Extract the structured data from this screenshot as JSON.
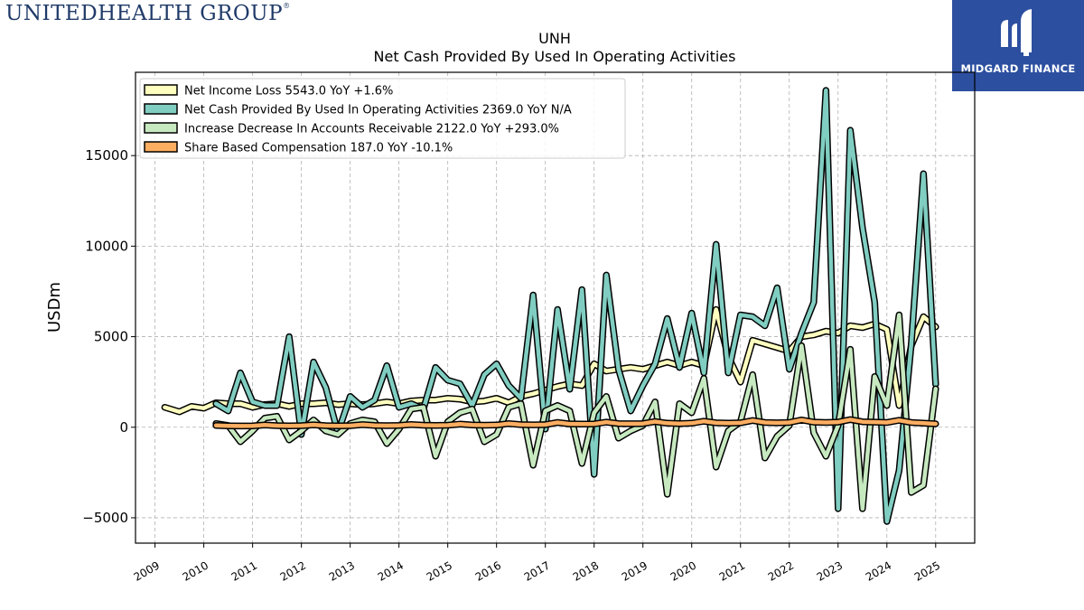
{
  "brand": {
    "logo_text": "UNITEDHEALTH GROUP",
    "logo_mark": "®"
  },
  "partner": {
    "name": "MIDGARD FINANCE",
    "bg_color": "#2c4fa0"
  },
  "chart_data": {
    "type": "line",
    "title": "UNH",
    "subtitle": "Net Cash Provided By Used In Operating Activities",
    "xlabel": "",
    "ylabel": "USDm",
    "xlim": [
      2008.6,
      2025.8
    ],
    "ylim": [
      -6400,
      19600
    ],
    "yticks": [
      -5000,
      0,
      5000,
      10000,
      15000
    ],
    "ytick_labels": [
      "−5000",
      "0",
      "5000",
      "10000",
      "15000"
    ],
    "xticks": [
      "2009",
      "2010",
      "2011",
      "2012",
      "2013",
      "2014",
      "2015",
      "2016",
      "2017",
      "2018",
      "2019",
      "2020",
      "2021",
      "2022",
      "2023",
      "2024",
      "2025"
    ],
    "grid": true,
    "legend_position": "top-left",
    "series": [
      {
        "name": "Net Income Loss",
        "legend_label": "Net Income Loss  5543.0 YoY +1.6%",
        "color": "#ffffbf",
        "x": [
          2009.2,
          2009.5,
          2009.75,
          2010.0,
          2010.25,
          2010.5,
          2010.75,
          2011.0,
          2011.25,
          2011.5,
          2011.75,
          2012.0,
          2012.25,
          2012.5,
          2012.75,
          2013.0,
          2013.25,
          2013.5,
          2013.75,
          2014.0,
          2014.25,
          2014.5,
          2014.75,
          2015.0,
          2015.25,
          2015.5,
          2015.75,
          2016.0,
          2016.25,
          2016.5,
          2016.75,
          2017.0,
          2017.25,
          2017.5,
          2017.75,
          2018.0,
          2018.25,
          2018.5,
          2018.75,
          2019.0,
          2019.25,
          2019.5,
          2019.75,
          2020.0,
          2020.25,
          2020.5,
          2020.75,
          2021.0,
          2021.25,
          2021.5,
          2021.75,
          2022.0,
          2022.25,
          2022.5,
          2022.75,
          2023.0,
          2023.25,
          2023.5,
          2023.75,
          2024.0,
          2024.25,
          2024.5,
          2024.75,
          2025.0
        ],
        "values": [
          1100,
          850,
          1150,
          1050,
          1350,
          1300,
          1300,
          1100,
          1250,
          1300,
          1150,
          1300,
          1300,
          1350,
          1250,
          1300,
          1250,
          1300,
          1400,
          1300,
          1450,
          1500,
          1500,
          1600,
          1550,
          1400,
          1450,
          1600,
          1350,
          1700,
          1850,
          2050,
          2250,
          2400,
          2300,
          3500,
          3100,
          3200,
          3300,
          3200,
          3400,
          3600,
          3400,
          3600,
          3400,
          6500,
          3900,
          2500,
          4800,
          4600,
          4400,
          4200,
          5000,
          5100,
          5300,
          5200,
          5600,
          5500,
          5700,
          5400,
          1200,
          4500,
          6100,
          5543
        ]
      },
      {
        "name": "Net Cash Provided By Used In Operating Activities",
        "legend_label": "Net Cash Provided By Used In Operating Activities  2369.0 YoY N/A",
        "color": "#80cdc1",
        "x": [
          2010.25,
          2010.5,
          2010.75,
          2011.0,
          2011.25,
          2011.5,
          2011.75,
          2012.0,
          2012.25,
          2012.5,
          2012.75,
          2013.0,
          2013.25,
          2013.5,
          2013.75,
          2014.0,
          2014.25,
          2014.5,
          2014.75,
          2015.0,
          2015.25,
          2015.5,
          2015.75,
          2016.0,
          2016.25,
          2016.5,
          2016.75,
          2017.0,
          2017.25,
          2017.5,
          2017.75,
          2018.0,
          2018.25,
          2018.5,
          2018.75,
          2019.0,
          2019.25,
          2019.5,
          2019.75,
          2020.0,
          2020.25,
          2020.5,
          2020.75,
          2021.0,
          2021.25,
          2021.5,
          2021.75,
          2022.0,
          2022.25,
          2022.5,
          2022.75,
          2023.0,
          2023.25,
          2023.5,
          2023.75,
          2024.0,
          2024.25,
          2024.5,
          2024.75,
          2025.0
        ],
        "values": [
          1300,
          900,
          3000,
          1400,
          1200,
          1200,
          5000,
          -400,
          3600,
          2200,
          -300,
          1700,
          1100,
          1500,
          3400,
          1100,
          1300,
          1000,
          3300,
          2600,
          2400,
          1200,
          2900,
          3500,
          2300,
          1600,
          7300,
          -100,
          6500,
          2100,
          7600,
          -2600,
          8400,
          3200,
          900,
          2300,
          3500,
          6000,
          3300,
          6300,
          3000,
          10100,
          3000,
          6200,
          6100,
          5600,
          7700,
          3200,
          5200,
          6900,
          18600,
          -4500,
          16400,
          11000,
          6900,
          -5200,
          -2400,
          4600,
          14000,
          2369
        ]
      },
      {
        "name": "Increase Decrease In Accounts Receivable",
        "legend_label": "Increase Decrease In Accounts Receivable  2122.0 YoY +293.0%",
        "color": "#c7e9c0",
        "x": [
          2010.25,
          2010.5,
          2010.75,
          2011.0,
          2011.25,
          2011.5,
          2011.75,
          2012.0,
          2012.25,
          2012.5,
          2012.75,
          2013.0,
          2013.25,
          2013.5,
          2013.75,
          2014.0,
          2014.25,
          2014.5,
          2014.75,
          2015.0,
          2015.25,
          2015.5,
          2015.75,
          2016.0,
          2016.25,
          2016.5,
          2016.75,
          2017.0,
          2017.25,
          2017.5,
          2017.75,
          2018.0,
          2018.25,
          2018.5,
          2018.75,
          2019.0,
          2019.25,
          2019.5,
          2019.75,
          2020.0,
          2020.25,
          2020.5,
          2020.75,
          2021.0,
          2021.25,
          2021.5,
          2021.75,
          2022.0,
          2022.25,
          2022.5,
          2022.75,
          2023.0,
          2023.25,
          2023.5,
          2023.75,
          2024.0,
          2024.25,
          2024.5,
          2024.75,
          2025.0
        ],
        "values": [
          200,
          100,
          -800,
          -200,
          500,
          600,
          -700,
          -200,
          400,
          -200,
          -400,
          200,
          400,
          300,
          -900,
          -100,
          1000,
          1100,
          -1600,
          300,
          800,
          1000,
          -800,
          -400,
          1100,
          1300,
          -2100,
          900,
          1200,
          900,
          -2000,
          800,
          1700,
          -600,
          -200,
          100,
          1400,
          -3700,
          1300,
          800,
          2700,
          -2200,
          -200,
          300,
          2900,
          -1700,
          -500,
          100,
          4500,
          -300,
          -1600,
          100,
          4300,
          -4500,
          2800,
          1200,
          6200,
          -3600,
          -3200,
          2122
        ]
      },
      {
        "name": "Share Based Compensation",
        "legend_label": "Share Based Compensation  187.0 YoY -10.1%",
        "color": "#fdae61",
        "x": [
          2010.25,
          2010.5,
          2010.75,
          2011.0,
          2011.25,
          2011.5,
          2011.75,
          2012.0,
          2012.25,
          2012.5,
          2012.75,
          2013.0,
          2013.25,
          2013.5,
          2013.75,
          2014.0,
          2014.25,
          2014.5,
          2014.75,
          2015.0,
          2015.25,
          2015.5,
          2015.75,
          2016.0,
          2016.25,
          2016.5,
          2016.75,
          2017.0,
          2017.25,
          2017.5,
          2017.75,
          2018.0,
          2018.25,
          2018.5,
          2018.75,
          2019.0,
          2019.25,
          2019.5,
          2019.75,
          2020.0,
          2020.25,
          2020.5,
          2020.75,
          2021.0,
          2021.25,
          2021.5,
          2021.75,
          2022.0,
          2022.25,
          2022.5,
          2022.75,
          2023.0,
          2023.25,
          2023.5,
          2023.75,
          2024.0,
          2024.25,
          2024.5,
          2024.75,
          2025.0
        ],
        "values": [
          100,
          80,
          70,
          80,
          120,
          90,
          80,
          90,
          130,
          90,
          80,
          90,
          140,
          100,
          90,
          100,
          150,
          110,
          100,
          110,
          170,
          120,
          110,
          120,
          200,
          140,
          130,
          140,
          260,
          180,
          170,
          180,
          280,
          200,
          190,
          200,
          310,
          220,
          200,
          220,
          330,
          240,
          220,
          240,
          370,
          260,
          240,
          260,
          400,
          280,
          260,
          280,
          420,
          300,
          280,
          260,
          380,
          260,
          220,
          187
        ]
      }
    ]
  }
}
